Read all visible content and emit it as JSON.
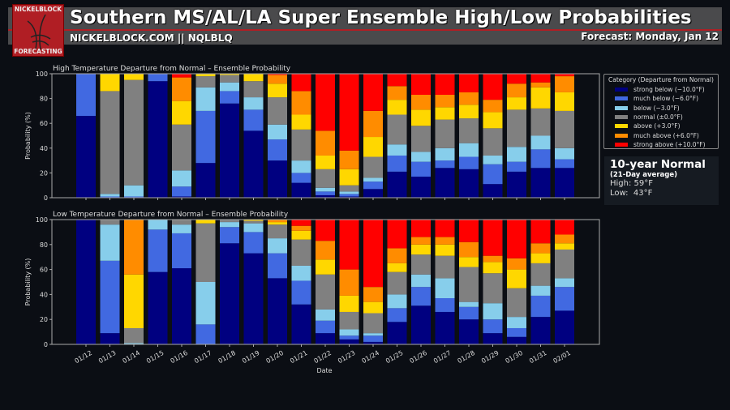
{
  "header": {
    "title": "Southern MS/AL/LA Super Ensemble High/Low Probabilities",
    "subtitle": "NICKELBLOCK.COM || NQLBLQ",
    "forecast": "Forecast: Monday, Jan 12",
    "logo_top": "NICKELBLOCK",
    "logo_bottom": "FORECASTING"
  },
  "normals": {
    "title": "10-year Normal",
    "subtitle": "(21-Day average)",
    "high": "High: 59°F",
    "low": "Low:  43°F"
  },
  "legend": {
    "title": "Category (Departure from Normal)",
    "items": [
      "strong below (−10.0°F)",
      "much below (−6.0°F)",
      "below (−3.0°F)",
      "normal (±0.0°F)",
      "above (+3.0°F)",
      "much above (+6.0°F)",
      "strong above (+10.0°F)"
    ],
    "colors": [
      "#000080",
      "#4169e1",
      "#87ceeb",
      "#808080",
      "#ffd700",
      "#ff8c00",
      "#ff0000"
    ]
  },
  "chart_data": [
    {
      "type": "bar",
      "stacked": true,
      "title": "High Temperature Departure from Normal – Ensemble Probability",
      "xlabel": "",
      "ylabel": "Probability (%)",
      "ylim": [
        0,
        100
      ],
      "yticks": [
        0,
        20,
        40,
        60,
        80,
        100
      ],
      "categories": [
        "01/12",
        "01/13",
        "01/14",
        "01/15",
        "01/16",
        "01/17",
        "01/18",
        "01/19",
        "01/20",
        "01/21",
        "01/22",
        "01/23",
        "01/24",
        "01/25",
        "01/26",
        "01/27",
        "01/28",
        "01/29",
        "01/30",
        "01/31",
        "02/01"
      ],
      "series": [
        {
          "name": "strong below",
          "values": [
            66,
            0,
            0,
            94,
            1,
            28,
            76,
            54,
            30,
            12,
            2,
            1,
            7,
            21,
            17,
            24,
            23,
            11,
            21,
            24,
            24
          ]
        },
        {
          "name": "much below",
          "values": [
            34,
            1,
            1,
            6,
            8,
            42,
            10,
            17,
            17,
            8,
            3,
            2,
            6,
            13,
            12,
            6,
            10,
            16,
            8,
            15,
            7
          ]
        },
        {
          "name": "below",
          "values": [
            0,
            2,
            9,
            0,
            13,
            19,
            7,
            10,
            12,
            10,
            3,
            2,
            3,
            9,
            8,
            10,
            11,
            7,
            12,
            11,
            9
          ]
        },
        {
          "name": "normal",
          "values": [
            0,
            83,
            85,
            0,
            37,
            9,
            6,
            13,
            22,
            25,
            15,
            5,
            17,
            24,
            21,
            23,
            20,
            22,
            30,
            22,
            30
          ]
        },
        {
          "name": "above",
          "values": [
            0,
            14,
            5,
            0,
            19,
            2,
            1,
            6,
            11,
            12,
            11,
            13,
            16,
            12,
            13,
            10,
            11,
            13,
            10,
            17,
            15
          ]
        },
        {
          "name": "much above",
          "values": [
            0,
            0,
            0,
            0,
            19,
            0,
            0,
            0,
            7,
            19,
            20,
            15,
            21,
            11,
            12,
            10,
            10,
            10,
            11,
            4,
            13
          ]
        },
        {
          "name": "strong above",
          "values": [
            0,
            0,
            0,
            0,
            3,
            0,
            0,
            0,
            1,
            14,
            46,
            62,
            30,
            10,
            17,
            17,
            15,
            21,
            8,
            7,
            2
          ]
        }
      ]
    },
    {
      "type": "bar",
      "stacked": true,
      "title": "Low Temperature Departure from Normal – Ensemble Probability",
      "xlabel": "Date",
      "ylabel": "Probability (%)",
      "ylim": [
        0,
        100
      ],
      "yticks": [
        0,
        20,
        40,
        60,
        80,
        100
      ],
      "categories": [
        "01/12",
        "01/13",
        "01/14",
        "01/15",
        "01/16",
        "01/17",
        "01/18",
        "01/19",
        "01/20",
        "01/21",
        "01/22",
        "01/23",
        "01/24",
        "01/25",
        "01/26",
        "01/27",
        "01/28",
        "01/29",
        "01/30",
        "01/31",
        "02/01"
      ],
      "series": [
        {
          "name": "strong below",
          "values": [
            100,
            9,
            0,
            58,
            61,
            0,
            81,
            73,
            53,
            32,
            9,
            4,
            2,
            18,
            31,
            26,
            20,
            9,
            6,
            22,
            27
          ]
        },
        {
          "name": "much below",
          "values": [
            0,
            58,
            0,
            34,
            28,
            16,
            13,
            17,
            20,
            19,
            10,
            3,
            5,
            11,
            15,
            11,
            10,
            11,
            7,
            17,
            19
          ]
        },
        {
          "name": "below",
          "values": [
            0,
            29,
            1,
            8,
            7,
            34,
            4,
            7,
            12,
            12,
            9,
            5,
            2,
            11,
            10,
            16,
            4,
            13,
            9,
            8,
            7
          ]
        },
        {
          "name": "normal",
          "values": [
            0,
            4,
            12,
            0,
            4,
            47,
            2,
            2,
            11,
            21,
            28,
            14,
            16,
            18,
            16,
            18,
            28,
            24,
            23,
            18,
            23
          ]
        },
        {
          "name": "above",
          "values": [
            0,
            0,
            43,
            0,
            0,
            3,
            0,
            1,
            2,
            7,
            12,
            13,
            9,
            7,
            8,
            9,
            8,
            9,
            15,
            8,
            5
          ]
        },
        {
          "name": "much above",
          "values": [
            0,
            0,
            44,
            0,
            0,
            0,
            0,
            0,
            2,
            4,
            15,
            21,
            12,
            12,
            6,
            6,
            12,
            5,
            9,
            8,
            7
          ]
        },
        {
          "name": "strong above",
          "values": [
            0,
            0,
            0,
            0,
            0,
            0,
            0,
            0,
            0,
            5,
            17,
            40,
            54,
            23,
            14,
            14,
            18,
            29,
            31,
            19,
            12
          ]
        }
      ]
    }
  ]
}
